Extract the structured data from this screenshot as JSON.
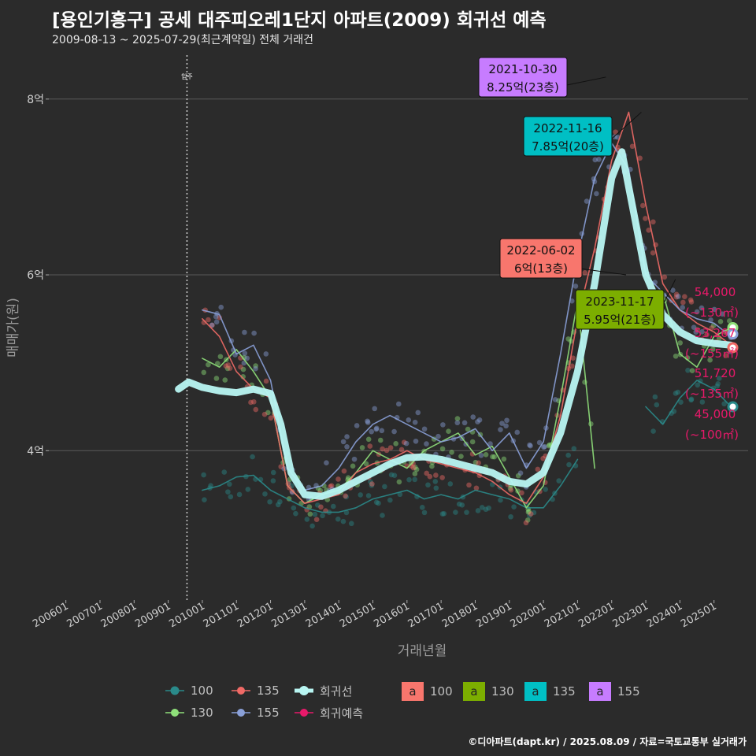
{
  "title": "[용인기흥구] 공세 대주피오레1단지 아파트(2009) 회귀선 예측",
  "subtitle": "2009-08-13 ~ 2025-07-29(최근계약일) 전체 거래건",
  "caption": "©디아파트(dapt.kr) / 2025.08.09 / 자료=국토교통부 실거래가",
  "colors": {
    "background": "#2b2b2b",
    "grid": "#5a5a5a",
    "a100": "#f8766d",
    "a130": "#7cae00",
    "a135": "#00bfc4",
    "a155": "#c77cff",
    "line100": "#2a8a8a",
    "line130": "#8fe07a",
    "line135": "#f06a66",
    "line155": "#8aa0d8",
    "regression": "#b8f5f2",
    "forecast": "#e8196a"
  },
  "chart_data": {
    "type": "line",
    "xlabel": "거래년월",
    "ylabel": "매매가(원)",
    "x_ticks": [
      "200601",
      "200701",
      "200801",
      "200901",
      "201001",
      "201101",
      "201201",
      "201301",
      "201401",
      "201501",
      "201601",
      "201701",
      "201801",
      "201901",
      "202001",
      "202101",
      "202201",
      "202301",
      "202401",
      "202501"
    ],
    "y_ticks": [
      {
        "value": 4.0,
        "label": "4억"
      },
      {
        "value": 6.0,
        "label": "6억"
      },
      {
        "value": 8.0,
        "label": "8억"
      }
    ],
    "ylim": [
      2.3,
      8.5
    ],
    "xlim": [
      2005.5,
      2026.0
    ],
    "move_in": {
      "x": 2009.55,
      "label": "입주"
    },
    "series": [
      {
        "name": "100",
        "color": "#2a8a8a",
        "points": [
          [
            2010.0,
            3.55
          ],
          [
            2010.5,
            3.6
          ],
          [
            2011.0,
            3.7
          ],
          [
            2011.5,
            3.72
          ],
          [
            2012.0,
            3.55
          ],
          [
            2012.5,
            3.45
          ],
          [
            2013.0,
            3.35
          ],
          [
            2013.5,
            3.3
          ],
          [
            2014.0,
            3.3
          ],
          [
            2014.5,
            3.35
          ],
          [
            2015.0,
            3.45
          ],
          [
            2015.5,
            3.5
          ],
          [
            2016.0,
            3.55
          ],
          [
            2016.5,
            3.45
          ],
          [
            2017.0,
            3.5
          ],
          [
            2017.5,
            3.45
          ],
          [
            2018.0,
            3.55
          ],
          [
            2018.5,
            3.5
          ],
          [
            2019.0,
            3.45
          ],
          [
            2019.5,
            3.35
          ],
          [
            2020.0,
            3.35
          ],
          [
            2020.5,
            3.6
          ],
          [
            2021.0,
            3.9
          ],
          [
            2023.0,
            4.5
          ],
          [
            2023.5,
            4.3
          ],
          [
            2024.0,
            4.6
          ],
          [
            2024.5,
            4.8
          ],
          [
            2025.0,
            4.7
          ],
          [
            2025.5,
            4.5
          ]
        ]
      },
      {
        "name": "130",
        "color": "#8fe07a",
        "points": [
          [
            2010.0,
            5.05
          ],
          [
            2010.5,
            4.95
          ],
          [
            2011.0,
            5.15
          ],
          [
            2011.5,
            4.9
          ],
          [
            2012.0,
            4.6
          ],
          [
            2012.5,
            3.6
          ],
          [
            2013.0,
            3.4
          ],
          [
            2013.5,
            3.5
          ],
          [
            2014.0,
            3.55
          ],
          [
            2014.5,
            3.75
          ],
          [
            2015.0,
            4.0
          ],
          [
            2015.5,
            3.9
          ],
          [
            2016.0,
            3.8
          ],
          [
            2016.5,
            4.0
          ],
          [
            2017.0,
            4.1
          ],
          [
            2017.5,
            4.2
          ],
          [
            2018.0,
            3.95
          ],
          [
            2018.5,
            4.05
          ],
          [
            2019.0,
            3.7
          ],
          [
            2019.5,
            3.35
          ],
          [
            2020.0,
            3.6
          ],
          [
            2020.5,
            4.6
          ],
          [
            2021.0,
            5.7
          ],
          [
            2021.5,
            3.8
          ],
          [
            2023.5,
            5.8
          ],
          [
            2024.0,
            5.1
          ],
          [
            2024.5,
            4.95
          ],
          [
            2025.0,
            5.3
          ],
          [
            2025.5,
            5.4
          ]
        ]
      },
      {
        "name": "135",
        "color": "#f06a66",
        "points": [
          [
            2010.0,
            5.5
          ],
          [
            2010.5,
            5.3
          ],
          [
            2011.0,
            4.9
          ],
          [
            2011.5,
            4.7
          ],
          [
            2012.0,
            4.6
          ],
          [
            2012.5,
            3.6
          ],
          [
            2013.0,
            3.4
          ],
          [
            2013.5,
            3.45
          ],
          [
            2014.0,
            3.5
          ],
          [
            2014.5,
            3.75
          ],
          [
            2015.0,
            3.85
          ],
          [
            2015.5,
            3.9
          ],
          [
            2016.0,
            4.0
          ],
          [
            2016.5,
            3.9
          ],
          [
            2017.0,
            3.85
          ],
          [
            2017.5,
            3.8
          ],
          [
            2018.0,
            3.75
          ],
          [
            2018.5,
            3.65
          ],
          [
            2019.0,
            3.5
          ],
          [
            2019.5,
            3.4
          ],
          [
            2020.0,
            3.7
          ],
          [
            2020.5,
            4.4
          ],
          [
            2021.0,
            5.5
          ],
          [
            2021.5,
            6.3
          ],
          [
            2022.0,
            7.3
          ],
          [
            2022.5,
            7.85
          ],
          [
            2023.0,
            6.8
          ],
          [
            2023.5,
            5.9
          ],
          [
            2024.0,
            5.6
          ],
          [
            2024.5,
            5.45
          ],
          [
            2025.0,
            5.35
          ],
          [
            2025.5,
            5.2
          ]
        ]
      },
      {
        "name": "155",
        "color": "#8aa0d8",
        "points": [
          [
            2010.0,
            5.6
          ],
          [
            2010.5,
            5.55
          ],
          [
            2011.0,
            5.1
          ],
          [
            2011.5,
            5.2
          ],
          [
            2012.0,
            4.8
          ],
          [
            2012.5,
            3.8
          ],
          [
            2013.0,
            3.55
          ],
          [
            2013.5,
            3.6
          ],
          [
            2014.0,
            3.8
          ],
          [
            2014.5,
            4.1
          ],
          [
            2015.0,
            4.3
          ],
          [
            2015.5,
            4.4
          ],
          [
            2016.0,
            4.3
          ],
          [
            2016.5,
            4.2
          ],
          [
            2017.0,
            4.1
          ],
          [
            2017.5,
            4.15
          ],
          [
            2018.0,
            4.25
          ],
          [
            2018.5,
            4.0
          ],
          [
            2019.0,
            4.2
          ],
          [
            2019.5,
            3.8
          ],
          [
            2020.0,
            4.1
          ],
          [
            2020.5,
            5.1
          ],
          [
            2021.0,
            6.2
          ],
          [
            2021.5,
            7.1
          ],
          [
            2022.0,
            7.5
          ],
          [
            2022.5,
            7.2
          ],
          [
            2023.0,
            6.0
          ],
          [
            2023.5,
            5.8
          ],
          [
            2024.0,
            5.6
          ],
          [
            2024.5,
            5.5
          ],
          [
            2025.0,
            5.45
          ],
          [
            2025.5,
            5.3
          ]
        ]
      },
      {
        "name": "회귀선",
        "color": "#b8f5f2",
        "points": [
          [
            2009.3,
            4.7
          ],
          [
            2009.6,
            4.78
          ],
          [
            2010.0,
            4.72
          ],
          [
            2010.5,
            4.68
          ],
          [
            2011.0,
            4.66
          ],
          [
            2011.5,
            4.7
          ],
          [
            2012.0,
            4.65
          ],
          [
            2012.3,
            4.3
          ],
          [
            2012.6,
            3.75
          ],
          [
            2013.0,
            3.5
          ],
          [
            2013.5,
            3.48
          ],
          [
            2014.0,
            3.55
          ],
          [
            2014.5,
            3.65
          ],
          [
            2015.0,
            3.75
          ],
          [
            2015.5,
            3.85
          ],
          [
            2016.0,
            3.92
          ],
          [
            2016.5,
            3.93
          ],
          [
            2017.0,
            3.9
          ],
          [
            2017.5,
            3.85
          ],
          [
            2018.0,
            3.8
          ],
          [
            2018.5,
            3.75
          ],
          [
            2019.0,
            3.65
          ],
          [
            2019.5,
            3.62
          ],
          [
            2020.0,
            3.75
          ],
          [
            2020.5,
            4.2
          ],
          [
            2021.0,
            4.9
          ],
          [
            2021.5,
            5.9
          ],
          [
            2022.0,
            7.1
          ],
          [
            2022.3,
            7.4
          ],
          [
            2022.6,
            6.8
          ],
          [
            2023.0,
            6.0
          ],
          [
            2023.5,
            5.55
          ],
          [
            2024.0,
            5.35
          ],
          [
            2024.5,
            5.25
          ],
          [
            2025.0,
            5.22
          ],
          [
            2025.5,
            5.2
          ]
        ]
      }
    ],
    "forecast_points": [
      {
        "value": 5.4,
        "color": "#8fe07a"
      },
      {
        "value": 5.327,
        "color": "#8aa0d8"
      },
      {
        "value": 5.172,
        "color": "#f06a66"
      },
      {
        "value": 4.5,
        "color": "#2a8a8a"
      }
    ],
    "annotations": [
      {
        "date": "2021-10-30",
        "price": "8.25억(23층)",
        "color": "#c77cff",
        "x": 2021.83,
        "y": 8.25
      },
      {
        "date": "2022-11-16",
        "price": "7.85억(20층)",
        "color": "#00bfc4",
        "x": 2022.87,
        "y": 7.85
      },
      {
        "date": "2022-06-02",
        "price": "6억(13층)",
        "color": "#f8766d",
        "x": 2022.42,
        "y": 6.0
      },
      {
        "date": "2023-11-17",
        "price": "5.95억(21층)",
        "color": "#7cae00",
        "x": 2023.87,
        "y": 5.95
      }
    ],
    "forecast_labels": [
      {
        "value": "54,000",
        "area": "(~130㎡)"
      },
      {
        "value": "53,267",
        "area": "(~155㎡)"
      },
      {
        "value": "51,720",
        "area": "(~135㎡)"
      },
      {
        "value": "45,000",
        "area": "(~100㎡)"
      }
    ]
  },
  "legend": {
    "line_items": [
      {
        "label": "100",
        "color": "#2a8a8a"
      },
      {
        "label": "135",
        "color": "#f06a66"
      },
      {
        "label": "회귀선",
        "color": "#b8f5f2"
      },
      {
        "label": "130",
        "color": "#8fe07a"
      },
      {
        "label": "155",
        "color": "#8aa0d8"
      },
      {
        "label": "회귀예측",
        "color": "#e8196a"
      }
    ],
    "box_glyph": "a",
    "box_items": [
      {
        "label": "100",
        "color": "#f8766d"
      },
      {
        "label": "130",
        "color": "#7cae00"
      },
      {
        "label": "135",
        "color": "#00bfc4"
      },
      {
        "label": "155",
        "color": "#c77cff"
      }
    ]
  }
}
